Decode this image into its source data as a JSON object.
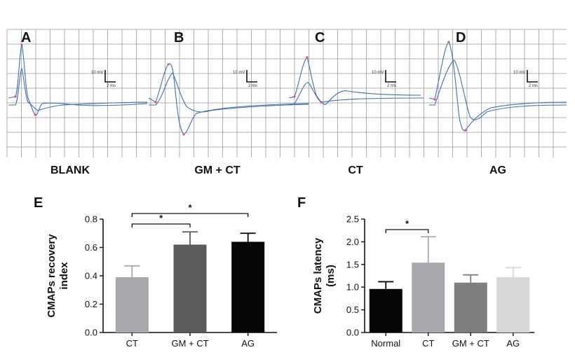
{
  "traces": {
    "panels": [
      {
        "letter": "A",
        "condition": "BLANK",
        "scale_mv": "10 mV",
        "scale_ms": "2 ms"
      },
      {
        "letter": "B",
        "condition": "GM + CT",
        "scale_mv": "10 mV",
        "scale_ms": "2 ms"
      },
      {
        "letter": "C",
        "condition": "CT",
        "scale_mv": "10 mV",
        "scale_ms": "2 ms"
      },
      {
        "letter": "D",
        "condition": "AG",
        "scale_mv": "10 mV",
        "scale_ms": "2 ms"
      }
    ],
    "colors": {
      "grid": "#9a9a9a",
      "trace": "#3f6fb5",
      "marker": "#e0507a"
    }
  },
  "chart_data": [
    {
      "panel": "E",
      "type": "bar",
      "categories": [
        "CT",
        "GM + CT",
        "AG"
      ],
      "values": [
        0.39,
        0.62,
        0.64
      ],
      "errors": [
        0.08,
        0.09,
        0.06
      ],
      "colors": [
        "#a7a7ad",
        "#5b5b5b",
        "#060606"
      ],
      "ylabel": "CMAPs recovery index",
      "ylim": [
        0,
        0.8
      ],
      "yticks": [
        "0.0",
        "0.2",
        "0.4",
        "0.6",
        "0.8"
      ],
      "significance": [
        {
          "from": 0,
          "to": 1,
          "label": "*"
        },
        {
          "from": 0,
          "to": 2,
          "label": "*"
        }
      ],
      "grid": false
    },
    {
      "panel": "F",
      "type": "bar",
      "categories": [
        "Normal",
        "CT",
        "GM + CT",
        "AG"
      ],
      "values": [
        0.96,
        1.54,
        1.1,
        1.22
      ],
      "errors": [
        0.16,
        0.57,
        0.17,
        0.21
      ],
      "colors": [
        "#060606",
        "#a7a7ad",
        "#7e7e7e",
        "#d8d8d8"
      ],
      "ylabel": "CMAPs latency (ms)",
      "ylim": [
        0,
        2.5
      ],
      "yticks": [
        "0.0",
        "0.5",
        "1.0",
        "1.5",
        "2.0",
        "2.5"
      ],
      "significance": [
        {
          "from": 0,
          "to": 1,
          "label": "*"
        }
      ],
      "grid": false
    }
  ]
}
